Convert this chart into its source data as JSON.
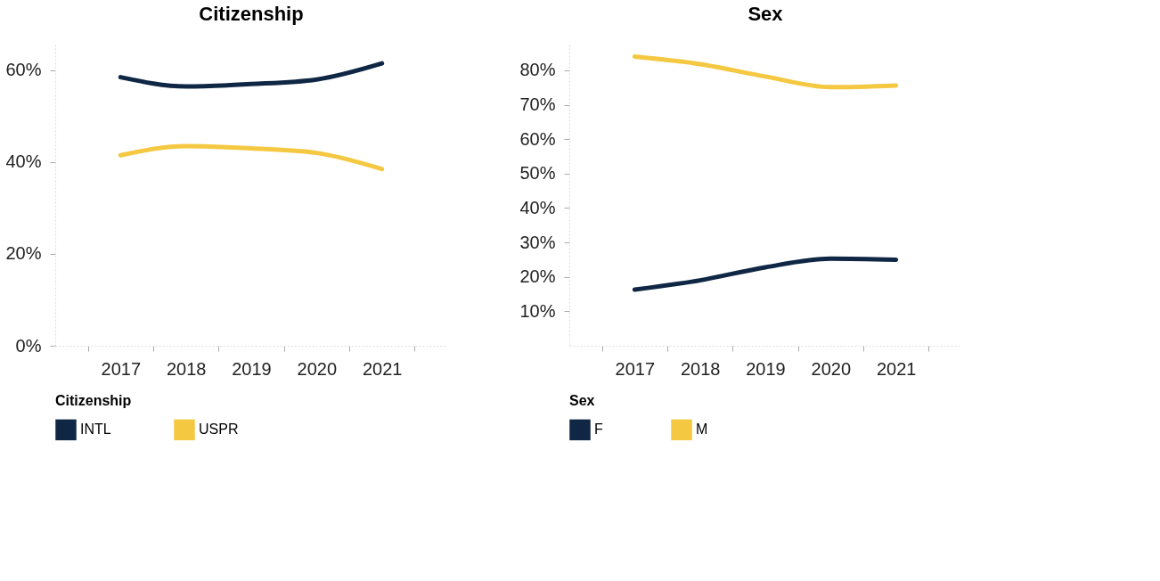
{
  "chart_data": [
    {
      "type": "line",
      "title": "Citizenship",
      "categories": [
        "2017",
        "2018",
        "2019",
        "2020",
        "2021"
      ],
      "series": [
        {
          "name": "INTL",
          "color": "#0f2744",
          "values": [
            58.5,
            56.5,
            57,
            58,
            61.5
          ]
        },
        {
          "name": "USPR",
          "color": "#f5c842",
          "values": [
            41.5,
            43.5,
            43,
            42,
            38.5
          ]
        }
      ],
      "ylim": [
        0,
        66
      ],
      "yticks": [
        {
          "value": 0,
          "label": "0%"
        },
        {
          "value": 20,
          "label": "20%"
        },
        {
          "value": 40,
          "label": "40%"
        },
        {
          "value": 60,
          "label": "60%"
        }
      ],
      "legend": "bottom",
      "legend_title": "Citizenship",
      "grid": false,
      "marker": "none",
      "line_style": "solid"
    },
    {
      "type": "line",
      "title": "Sex",
      "categories": [
        "2017",
        "2018",
        "2019",
        "2020",
        "2021"
      ],
      "series": [
        {
          "name": "F",
          "color": "#0f2744",
          "values": [
            16.3,
            19,
            22.8,
            25.3,
            25
          ]
        },
        {
          "name": "M",
          "color": "#f5c842",
          "values": [
            84,
            81.8,
            78.2,
            75.1,
            75.6
          ]
        }
      ],
      "ylim": [
        0,
        88
      ],
      "yticks": [
        {
          "value": 10,
          "label": "10%"
        },
        {
          "value": 20,
          "label": "20%"
        },
        {
          "value": 30,
          "label": "30%"
        },
        {
          "value": 40,
          "label": "40%"
        },
        {
          "value": 50,
          "label": "50%"
        },
        {
          "value": 60,
          "label": "60%"
        },
        {
          "value": 70,
          "label": "70%"
        },
        {
          "value": 80,
          "label": "80%"
        }
      ],
      "legend": "bottom",
      "legend_title": "Sex",
      "grid": false,
      "marker": "none",
      "line_style": "solid"
    }
  ]
}
